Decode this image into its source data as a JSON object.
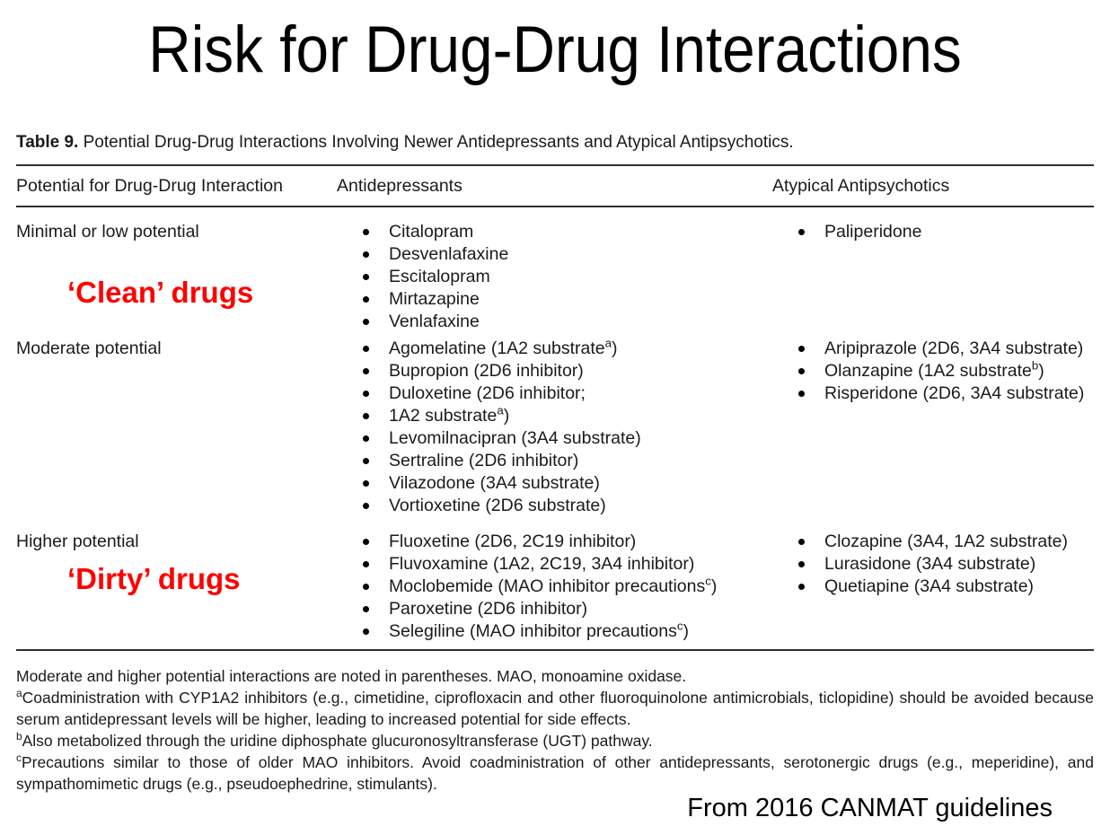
{
  "title": "Risk for Drug-Drug Interactions",
  "source": "From 2016 CANMAT guidelines",
  "colors": {
    "annotation": "#ff0000",
    "rule": "#2f2f2f"
  },
  "table": {
    "caption_label": "Table 9.",
    "caption_title": "Potential Drug-Drug Interactions Involving Newer Antidepressants and Atypical Antipsychotics.",
    "columns": [
      "Potential for Drug-Drug Interaction",
      "Antidepressants",
      "Atypical Antipsychotics"
    ],
    "rows": [
      {
        "label": "Minimal or low potential",
        "annotation": "‘Clean’ drugs",
        "antidepressants": [
          "Citalopram",
          "Desvenlafaxine",
          "Escitalopram",
          "Mirtazapine",
          "Venlafaxine"
        ],
        "antipsychotics": [
          "Paliperidone"
        ]
      },
      {
        "label": "Moderate potential",
        "annotation": "",
        "antidepressants": [
          "Agomelatine (1A2 substrate^a)",
          "Bupropion (2D6 inhibitor)",
          "Duloxetine (2D6 inhibitor;",
          "1A2 substrate^a)",
          "Levomilnacipran (3A4 substrate)",
          "Sertraline (2D6 inhibitor)",
          "Vilazodone (3A4 substrate)",
          "Vortioxetine (2D6 substrate)"
        ],
        "antipsychotics": [
          "Aripiprazole (2D6, 3A4 substrate)",
          "Olanzapine (1A2 substrate^b)",
          "Risperidone (2D6, 3A4 substrate)"
        ]
      },
      {
        "label": "Higher potential",
        "annotation": "‘Dirty’ drugs",
        "antidepressants": [
          "Fluoxetine (2D6, 2C19 inhibitor)",
          "Fluvoxamine (1A2, 2C19, 3A4 inhibitor)",
          "Moclobemide (MAO inhibitor precautions^c)",
          "Paroxetine (2D6 inhibitor)",
          "Selegiline (MAO inhibitor precautions^c)"
        ],
        "antipsychotics": [
          "Clozapine (3A4, 1A2 substrate)",
          "Lurasidone (3A4 substrate)",
          "Quetiapine (3A4 substrate)"
        ]
      }
    ],
    "footnotes": [
      {
        "sup": "",
        "text": "Moderate and higher potential interactions are noted in parentheses. MAO, monoamine oxidase."
      },
      {
        "sup": "a",
        "text": "Coadministration with CYP1A2 inhibitors (e.g., cimetidine, ciprofloxacin and other fluoroquinolone antimicrobials, ticlopidine) should be avoided because serum antidepressant levels will be higher, leading to increased potential for side effects."
      },
      {
        "sup": "b",
        "text": "Also metabolized through the uridine diphosphate glucuronosyltransferase (UGT) pathway."
      },
      {
        "sup": "c",
        "text": "Precautions similar to those of older MAO inhibitors. Avoid coadministration of other antidepressants, serotonergic drugs (e.g., meperidine), and sympathomimetic drugs (e.g., pseudoephedrine, stimulants)."
      }
    ]
  }
}
